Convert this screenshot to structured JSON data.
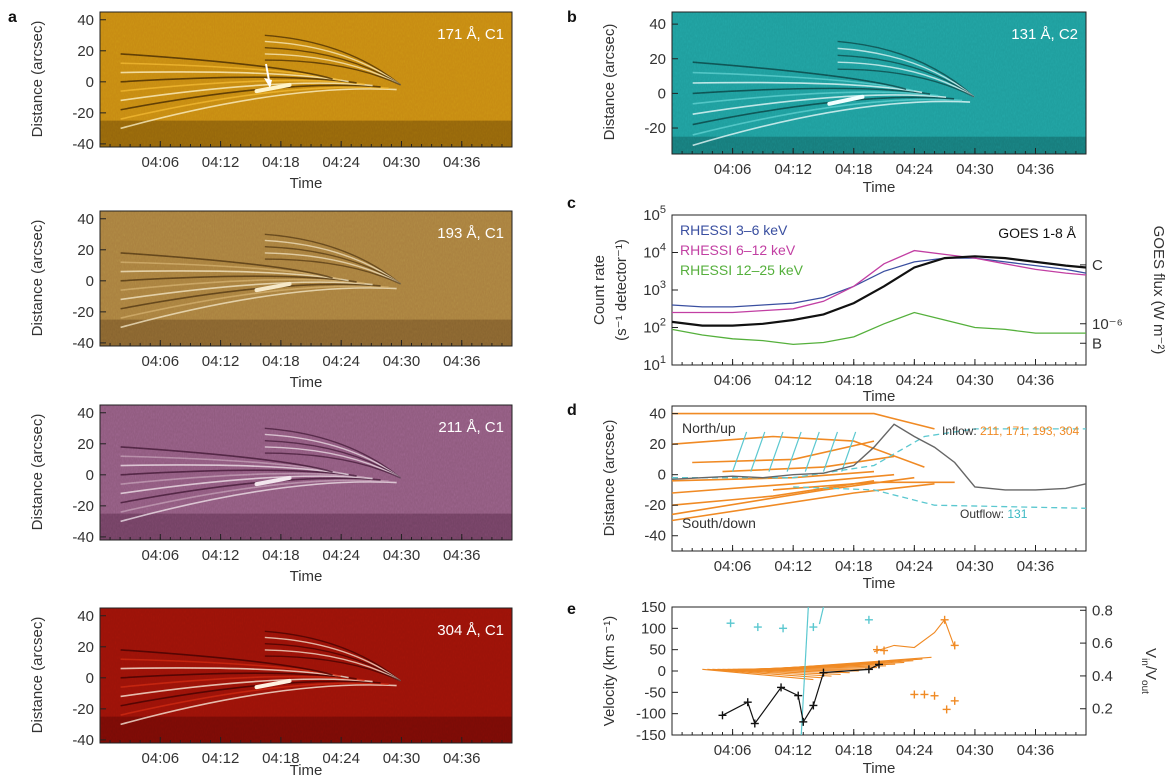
{
  "figure": {
    "panel_letters": [
      "a",
      "b",
      "c",
      "d",
      "e"
    ]
  },
  "chart_data": [
    {
      "id": "a171",
      "type": "heatmap",
      "panel_letter": "a",
      "label": "171 Å, C1",
      "xlabel": "Time",
      "ylabel": "Distance (arcsec)",
      "x_ticks": [
        "04:06",
        "04:12",
        "04:18",
        "04:24",
        "04:30",
        "04:36"
      ],
      "y_ticks": [
        40,
        20,
        0,
        -20,
        -40
      ],
      "ylim": [
        -42,
        45
      ],
      "colormap": [
        "#3a2300",
        "#c78a12",
        "#f3b732",
        "#fff4c8"
      ]
    },
    {
      "id": "a193",
      "type": "heatmap",
      "panel_letter": "",
      "label": "193 Å, C1",
      "xlabel": "Time",
      "ylabel": "Distance (arcsec)",
      "x_ticks": [
        "04:06",
        "04:12",
        "04:18",
        "04:24",
        "04:30",
        "04:36"
      ],
      "y_ticks": [
        40,
        20,
        0,
        -20,
        -40
      ],
      "ylim": [
        -42,
        45
      ],
      "colormap": [
        "#4a3210",
        "#a9803f",
        "#d3ae6c",
        "#f6e8c6"
      ]
    },
    {
      "id": "a211",
      "type": "heatmap",
      "panel_letter": "",
      "label": "211 Å, C1",
      "xlabel": "Time",
      "ylabel": "Distance (arcsec)",
      "x_ticks": [
        "04:06",
        "04:12",
        "04:18",
        "04:24",
        "04:30",
        "04:36"
      ],
      "y_ticks": [
        40,
        20,
        0,
        -20,
        -40
      ],
      "ylim": [
        -42,
        45
      ],
      "colormap": [
        "#3b1430",
        "#8f5a7e",
        "#c29bb4",
        "#f3e6ee"
      ]
    },
    {
      "id": "a304",
      "type": "heatmap",
      "panel_letter": "",
      "label": "304 Å, C1",
      "xlabel": "Time",
      "ylabel": "Distance (arcsec)",
      "x_ticks": [
        "04:06",
        "04:12",
        "04:18",
        "04:24",
        "04:30",
        "04:36"
      ],
      "y_ticks": [
        40,
        20,
        0,
        -20,
        -40
      ],
      "ylim": [
        -42,
        45
      ],
      "colormap": [
        "#3b0000",
        "#9a1208",
        "#cf2a12",
        "#fff2e0"
      ]
    },
    {
      "id": "b131",
      "type": "heatmap",
      "panel_letter": "b",
      "label": "131 Å, C2",
      "xlabel": "Time",
      "ylabel": "Distance (arcsec)",
      "x_ticks": [
        "04:06",
        "04:12",
        "04:18",
        "04:24",
        "04:30",
        "04:36"
      ],
      "y_ticks": [
        40,
        20,
        0,
        -20
      ],
      "ylim": [
        -35,
        47
      ],
      "colormap": [
        "#0a3b3b",
        "#1f9d9d",
        "#5fd0d0",
        "#f0ffff"
      ]
    },
    {
      "id": "c",
      "type": "line",
      "panel_letter": "c",
      "xlabel": "Time",
      "ylabel": "Count rate",
      "ylabel_unit": "(s⁻¹ detector⁻¹)",
      "y2label": "GOES flux (W m⁻²)",
      "log_scale": true,
      "ylim": [
        1,
        5
      ],
      "x_ticks": [
        "04:06",
        "04:12",
        "04:18",
        "04:24",
        "04:30",
        "04:36"
      ],
      "y_ticks": [
        {
          "mant": "10",
          "exp": "5"
        },
        {
          "mant": "10",
          "exp": "4"
        },
        {
          "mant": "10",
          "exp": "3"
        },
        {
          "mant": "10",
          "exp": "2"
        },
        {
          "mant": "10",
          "exp": "1"
        }
      ],
      "right_labels": [
        {
          "text": "C",
          "log_value": 3.67
        },
        {
          "text": "10⁻⁶",
          "log_value": 2.1
        },
        {
          "text": "B",
          "log_value": 1.58
        }
      ],
      "x": [
        "04:00",
        "04:03",
        "04:06",
        "04:09",
        "04:12",
        "04:15",
        "04:18",
        "04:21",
        "04:24",
        "04:27",
        "04:30",
        "04:33",
        "04:36",
        "04:39",
        "04:41"
      ],
      "series": [
        {
          "name": "RHESSI 3–6 keV",
          "color": "#3a4fa0",
          "values": [
            2.6,
            2.55,
            2.55,
            2.6,
            2.65,
            2.8,
            3.1,
            3.5,
            3.75,
            3.85,
            3.85,
            3.75,
            3.65,
            3.55,
            3.45
          ]
        },
        {
          "name": "RHESSI 6–12 keV",
          "color": "#c23fa3",
          "values": [
            2.4,
            2.4,
            2.4,
            2.45,
            2.5,
            2.7,
            3.1,
            3.7,
            4.05,
            3.95,
            3.85,
            3.7,
            3.55,
            3.45,
            3.4
          ]
        },
        {
          "name": "RHESSI 12–25 keV",
          "color": "#55b03c",
          "values": [
            1.95,
            1.8,
            1.7,
            1.65,
            1.55,
            1.6,
            1.75,
            2.1,
            2.4,
            2.2,
            2.0,
            1.95,
            1.85,
            1.85,
            1.85
          ]
        },
        {
          "name": "GOES 1-8 Å",
          "color": "#111111",
          "values": [
            2.15,
            2.05,
            2.05,
            2.1,
            2.2,
            2.35,
            2.65,
            3.1,
            3.6,
            3.85,
            3.9,
            3.85,
            3.75,
            3.65,
            3.6
          ]
        }
      ]
    },
    {
      "id": "d",
      "type": "line",
      "panel_letter": "d",
      "xlabel": "Time",
      "ylabel": "Distance (arcsec)",
      "x_ticks": [
        "04:06",
        "04:12",
        "04:18",
        "04:24",
        "04:30",
        "04:36"
      ],
      "y_ticks": [
        40,
        20,
        0,
        -20,
        -40
      ],
      "ylim": [
        -50,
        45
      ],
      "annotations": {
        "north": "North/up",
        "south": "South/down",
        "inflow_prefix": "Inflow: ",
        "inflow_list": "211, 171, 193, 304",
        "outflow_prefix": "Outflow: ",
        "outflow_list": "131"
      },
      "x": [
        "04:00",
        "04:03",
        "04:06",
        "04:09",
        "04:12",
        "04:15",
        "04:18",
        "04:20",
        "04:22",
        "04:24",
        "04:26",
        "04:28",
        "04:30",
        "04:33",
        "04:36",
        "04:39",
        "04:41"
      ],
      "series": [
        {
          "name": "profile",
          "color": "#666666",
          "values": [
            -3,
            -2,
            -1,
            -2,
            0,
            1,
            6,
            18,
            33,
            25,
            18,
            8,
            -8,
            -10,
            -10,
            -9,
            -6
          ]
        }
      ],
      "inflow_color": "#f08a24",
      "outflow_color": "#5bc8d0"
    },
    {
      "id": "e",
      "type": "scatter",
      "panel_letter": "e",
      "xlabel": "Time",
      "ylabel": "Velocity (km s⁻¹)",
      "y2label": "V_in / V_out",
      "y2label_main": "V",
      "y2label_in": "in",
      "y2label_slash": "/V",
      "y2label_out": "out",
      "x_ticks": [
        "04:06",
        "04:12",
        "04:18",
        "04:24",
        "04:30",
        "04:36"
      ],
      "y_ticks": [
        150,
        100,
        50,
        0,
        -50,
        -100,
        -150
      ],
      "ylim": [
        -150,
        150
      ],
      "y2_ticks": [
        0.8,
        0.6,
        0.4,
        0.2
      ],
      "y2lim": [
        0.04,
        0.82
      ],
      "series": [
        {
          "name": "outflow",
          "color": "#5bc8d0",
          "points": [
            [
              5.8,
              112
            ],
            [
              8.5,
              103
            ],
            [
              11.0,
              100
            ],
            [
              14.0,
              103
            ],
            [
              19.5,
              120
            ]
          ]
        },
        {
          "name": "ratio",
          "color": "#111111",
          "points": [
            [
              5.0,
              0.16
            ],
            [
              7.5,
              0.24
            ],
            [
              8.2,
              0.11
            ],
            [
              10.8,
              0.33
            ],
            [
              12.5,
              0.28
            ],
            [
              13.0,
              0.12
            ],
            [
              14.0,
              0.22
            ],
            [
              15.0,
              0.42
            ],
            [
              19.5,
              0.44
            ],
            [
              20.5,
              0.47
            ]
          ]
        },
        {
          "name": "inflow",
          "color": "#f08a24",
          "points": [
            [
              20.3,
              50
            ],
            [
              21.0,
              48
            ],
            [
              24.0,
              -55
            ],
            [
              25.0,
              -55
            ],
            [
              26.0,
              -58
            ],
            [
              27.0,
              120
            ],
            [
              28.0,
              60
            ],
            [
              27.2,
              -90
            ],
            [
              28.0,
              -70
            ]
          ]
        }
      ]
    }
  ]
}
